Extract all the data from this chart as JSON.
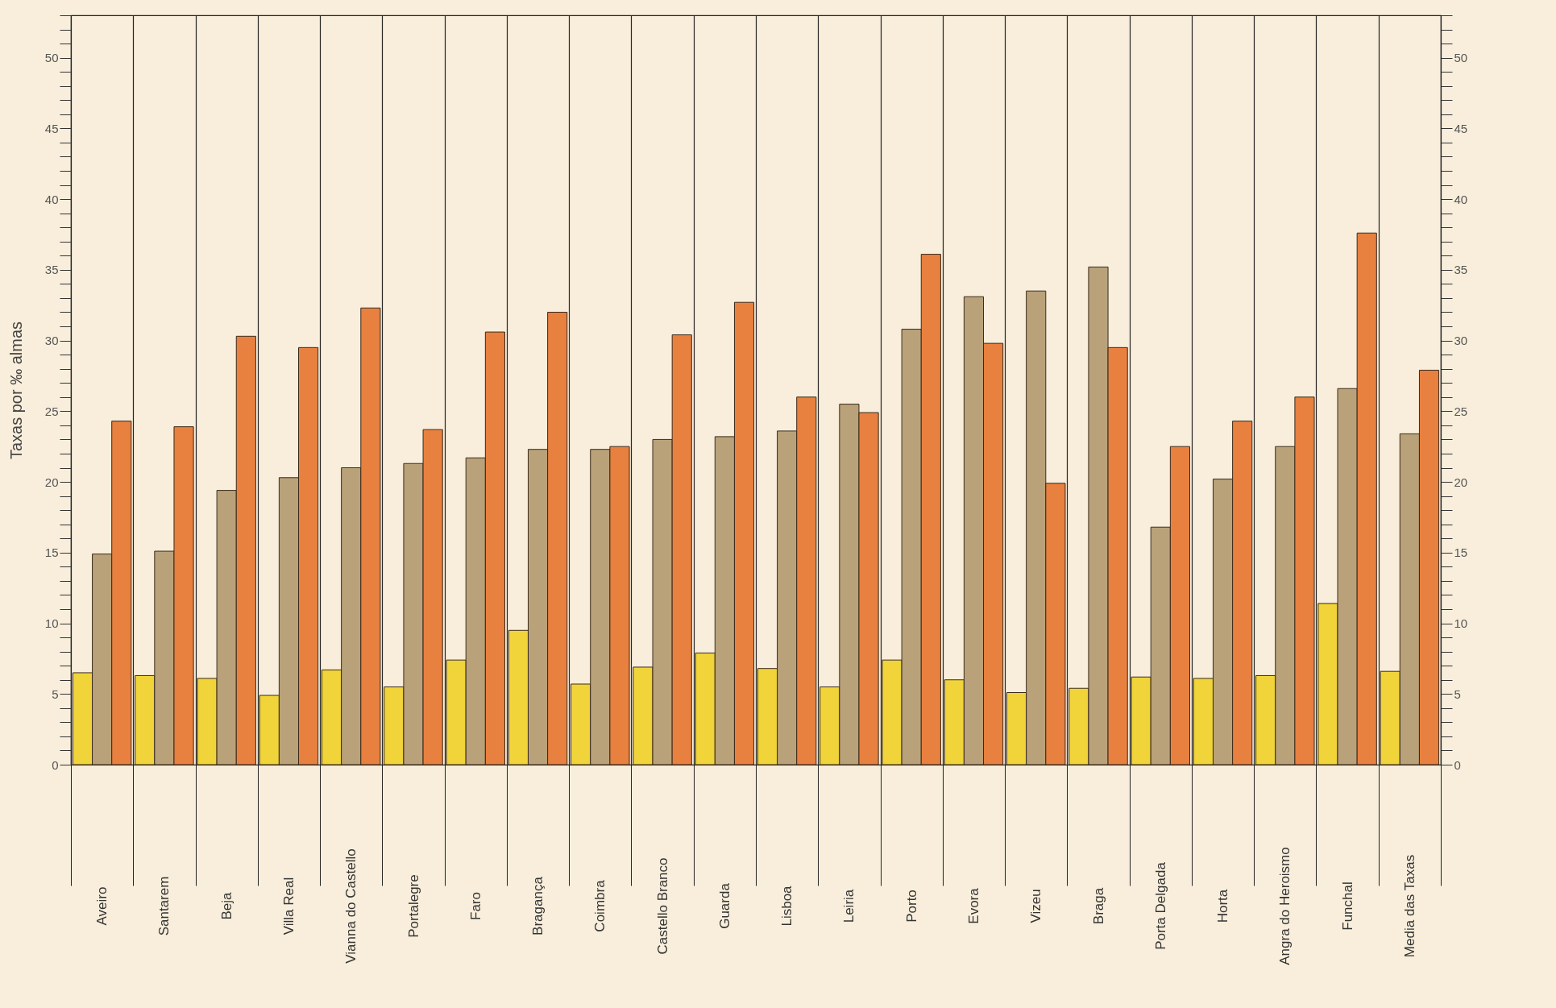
{
  "chart_data": {
    "type": "bar",
    "ylabel": "Taxas por ‰ almas",
    "categories": [
      "Aveiro",
      "Santarem",
      "Beja",
      "Villa Real",
      "Vianna do Castello",
      "Portalegre",
      "Faro",
      "Bragança",
      "Coimbra",
      "Castello Branco",
      "Guarda",
      "Lisboa",
      "Leiria",
      "Porto",
      "Evora",
      "Vizeu",
      "Braga",
      "Porta Delgada",
      "Horta",
      "Angra do Heroismo",
      "Funchal",
      "Media das Taxas"
    ],
    "series": [
      {
        "color": "#f0d43a",
        "values": [
          6.5,
          6.3,
          6.1,
          4.9,
          6.7,
          5.5,
          7.4,
          9.5,
          5.7,
          6.9,
          7.9,
          6.8,
          5.5,
          7.4,
          6.0,
          5.1,
          5.4,
          6.2,
          6.1,
          6.3,
          11.4,
          6.6
        ]
      },
      {
        "color": "#b9a27a",
        "values": [
          14.9,
          15.1,
          19.4,
          20.3,
          21.0,
          21.3,
          21.7,
          22.3,
          22.3,
          23.0,
          23.2,
          23.6,
          25.5,
          30.8,
          33.1,
          33.5,
          35.2,
          16.8,
          20.2,
          22.5,
          26.6,
          23.4
        ]
      },
      {
        "color": "#e8803f",
        "values": [
          24.3,
          23.9,
          30.3,
          29.5,
          32.3,
          23.7,
          30.6,
          32.0,
          22.5,
          30.4,
          32.7,
          26.0,
          24.9,
          36.1,
          29.8,
          19.9,
          29.5,
          22.5,
          24.3,
          26.0,
          37.6,
          27.9
        ]
      }
    ],
    "ylim": [
      0,
      53
    ],
    "yticks": [
      0,
      {
        "value": 1,
        "label": null
      },
      {
        "value": 2,
        "label": null
      },
      {
        "value": 3,
        "label": null
      },
      {
        "value": 4,
        "label": null
      },
      5,
      {
        "value": 6,
        "label": null
      },
      {
        "value": 7,
        "label": null
      },
      {
        "value": 8,
        "label": null
      },
      {
        "value": 9,
        "label": null
      },
      10,
      {
        "value": 11,
        "label": null
      },
      {
        "value": 12,
        "label": null
      },
      {
        "value": 13,
        "label": null
      },
      {
        "value": 14,
        "label": null
      },
      15,
      {
        "value": 16,
        "label": null
      },
      {
        "value": 17,
        "label": null
      },
      {
        "value": 18,
        "label": null
      },
      {
        "value": 19,
        "label": null
      },
      20,
      {
        "value": 21,
        "label": null
      },
      {
        "value": 22,
        "label": null
      },
      {
        "value": 23,
        "label": null
      },
      {
        "value": 24,
        "label": null
      },
      25,
      {
        "value": 26,
        "label": null
      },
      {
        "value": 27,
        "label": null
      },
      {
        "value": 28,
        "label": null
      },
      {
        "value": 29,
        "label": null
      },
      30,
      {
        "value": 31,
        "label": null
      },
      {
        "value": 32,
        "label": null
      },
      {
        "value": 33,
        "label": null
      },
      {
        "value": 34,
        "label": null
      },
      35,
      {
        "value": 36,
        "label": null
      },
      {
        "value": 37,
        "label": null
      },
      {
        "value": 38,
        "label": null
      },
      {
        "value": 39,
        "label": null
      },
      40,
      {
        "value": 41,
        "label": null
      },
      {
        "value": 42,
        "label": null
      },
      {
        "value": 43,
        "label": null
      },
      {
        "value": 44,
        "label": null
      },
      45,
      {
        "value": 46,
        "label": null
      },
      {
        "value": 47,
        "label": null
      },
      {
        "value": 48,
        "label": null
      },
      {
        "value": 49,
        "label": null
      },
      50,
      {
        "value": 51,
        "label": null
      },
      {
        "value": 52,
        "label": null
      },
      {
        "value": 53,
        "label": null
      }
    ],
    "y2lim": [
      0,
      53
    ],
    "y2ticks": [
      0,
      {
        "value": 1,
        "label": null
      },
      {
        "value": 2,
        "label": null
      },
      {
        "value": 3,
        "label": null
      },
      {
        "value": 4,
        "label": null
      },
      5,
      {
        "value": 6,
        "label": null
      },
      {
        "value": 7,
        "label": null
      },
      {
        "value": 8,
        "label": null
      },
      {
        "value": 9,
        "label": null
      },
      10,
      {
        "value": 11,
        "label": null
      },
      {
        "value": 12,
        "label": null
      },
      {
        "value": 13,
        "label": null
      },
      {
        "value": 14,
        "label": null
      },
      15,
      {
        "value": 16,
        "label": null
      },
      {
        "value": 17,
        "label": null
      },
      {
        "value": 18,
        "label": null
      },
      {
        "value": 19,
        "label": null
      },
      20,
      {
        "value": 21,
        "label": null
      },
      {
        "value": 22,
        "label": null
      },
      {
        "value": 23,
        "label": null
      },
      {
        "value": 24,
        "label": null
      },
      25,
      {
        "value": 26,
        "label": null
      },
      {
        "value": 27,
        "label": null
      },
      {
        "value": 28,
        "label": null
      },
      {
        "value": 29,
        "label": null
      },
      30,
      {
        "value": 31,
        "label": null
      },
      {
        "value": 32,
        "label": null
      },
      {
        "value": 33,
        "label": null
      },
      {
        "value": 34,
        "label": null
      },
      35,
      {
        "value": 36,
        "label": null
      },
      {
        "value": 37,
        "label": null
      },
      {
        "value": 38,
        "label": null
      },
      {
        "value": 39,
        "label": null
      },
      40,
      {
        "value": 41,
        "label": null
      },
      {
        "value": 42,
        "label": null
      },
      {
        "value": 43,
        "label": null
      },
      {
        "value": 44,
        "label": null
      },
      45,
      {
        "value": 46,
        "label": null
      },
      {
        "value": 47,
        "label": null
      },
      {
        "value": 48,
        "label": null
      },
      {
        "value": 49,
        "label": null
      },
      50,
      {
        "value": 51,
        "label": null
      },
      {
        "value": 52,
        "label": null
      },
      {
        "value": 53,
        "label": null
      }
    ],
    "grid": "x",
    "legend": false
  }
}
